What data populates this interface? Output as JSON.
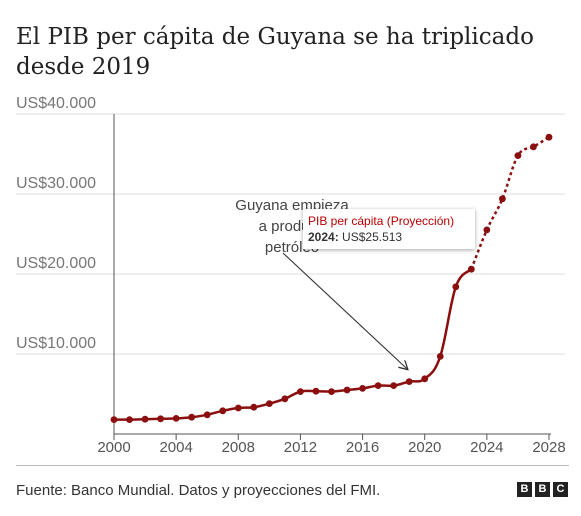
{
  "title": "El PIB per cápita de Guyana se ha triplicado desde 2019",
  "chart_data": {
    "type": "line",
    "title": "El PIB per cápita de Guyana se ha triplicado desde 2019",
    "xlabel": "",
    "ylabel": "",
    "xlim": [
      2000,
      2028
    ],
    "ylim": [
      0,
      40000
    ],
    "grid": "horizontal",
    "legend": "none",
    "y_ticks": [
      {
        "value": 10000,
        "label": "US$10.000"
      },
      {
        "value": 20000,
        "label": "US$20.000"
      },
      {
        "value": 30000,
        "label": "US$30.000"
      },
      {
        "value": 40000,
        "label": "US$40.000"
      }
    ],
    "x_ticks": [
      {
        "value": 2000,
        "label": "2000"
      },
      {
        "value": 2004,
        "label": "2004"
      },
      {
        "value": 2008,
        "label": "2008"
      },
      {
        "value": 2012,
        "label": "2012"
      },
      {
        "value": 2016,
        "label": "2016"
      },
      {
        "value": 2020,
        "label": "2020"
      },
      {
        "value": 2024,
        "label": "2024"
      },
      {
        "value": 2028,
        "label": "2028"
      }
    ],
    "series": [
      {
        "name": "PIB per cápita",
        "style": "solid",
        "color": "#8b0f0f",
        "x": [
          2000,
          2001,
          2002,
          2003,
          2004,
          2005,
          2006,
          2007,
          2008,
          2009,
          2010,
          2011,
          2012,
          2013,
          2014,
          2015,
          2016,
          2017,
          2018,
          2019,
          2020,
          2021,
          2022,
          2023
        ],
        "y": [
          1800,
          1800,
          1850,
          1900,
          1950,
          2100,
          2400,
          2900,
          3250,
          3350,
          3800,
          4400,
          5300,
          5350,
          5300,
          5500,
          5700,
          6050,
          6050,
          6550,
          6900,
          9700,
          18400,
          20600
        ]
      },
      {
        "name": "PIB per cápita (Proyección)",
        "style": "dashed",
        "color": "#8b0f0f",
        "x": [
          2023,
          2024,
          2025,
          2026,
          2027,
          2028
        ],
        "y": [
          20600,
          25513,
          29400,
          34800,
          35900,
          37100
        ]
      }
    ],
    "annotations": [
      {
        "lines": [
          "Guyana empieza",
          "a producir",
          "petróleo"
        ],
        "arrow_to": {
          "x": 2019,
          "y": 7000
        }
      }
    ],
    "tooltip": {
      "series": "PIB per cápita (Proyección)",
      "year": "2024:",
      "value": "US$25.513"
    }
  },
  "source": "Fuente: Banco Mundial. Datos y proyecciones del FMI.",
  "logo": [
    "B",
    "B",
    "C"
  ]
}
